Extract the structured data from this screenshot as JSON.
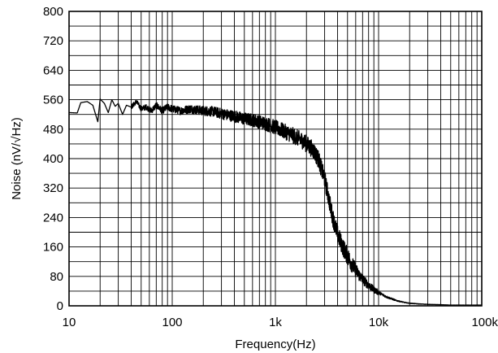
{
  "chart_data": {
    "type": "line",
    "title": "",
    "xlabel": "Frequency(Hz)",
    "ylabel": "Noise (nV/√Hz)",
    "x_scale": "log",
    "xlim": [
      10,
      100000
    ],
    "ylim": [
      0,
      800
    ],
    "x_ticks": [
      10,
      100,
      1000,
      10000,
      100000
    ],
    "x_tick_labels": [
      "10",
      "100",
      "1k",
      "10k",
      "100k"
    ],
    "y_ticks": [
      0,
      80,
      160,
      240,
      320,
      400,
      480,
      560,
      640,
      720,
      800
    ],
    "y_tick_labels": [
      "0",
      "80",
      "160",
      "240",
      "320",
      "400",
      "480",
      "560",
      "640",
      "720",
      "800"
    ],
    "grid": true,
    "series": [
      {
        "name": "",
        "color": "#000000",
        "x": [
          10,
          12,
          13,
          15,
          17,
          19,
          20,
          22,
          24,
          26,
          28,
          30,
          33,
          36,
          40,
          45,
          50,
          56,
          63,
          70,
          80,
          90,
          100,
          120,
          150,
          200,
          250,
          300,
          400,
          500,
          600,
          700,
          800,
          1000,
          1200,
          1500,
          1800,
          2000,
          2300,
          2600,
          3000,
          3300,
          3600,
          4000,
          4500,
          5000,
          5600,
          6300,
          7000,
          8000,
          9000,
          10000,
          12000,
          15000,
          18000,
          20000,
          25000,
          30000,
          40000,
          50000,
          60000,
          70000,
          80000,
          100000
        ],
        "y": [
          525,
          524,
          552,
          555,
          545,
          500,
          562,
          550,
          525,
          560,
          542,
          550,
          520,
          545,
          540,
          555,
          535,
          540,
          530,
          545,
          530,
          540,
          535,
          530,
          535,
          530,
          528,
          522,
          515,
          508,
          505,
          500,
          495,
          485,
          475,
          462,
          450,
          440,
          425,
          400,
          345,
          290,
          240,
          195,
          160,
          135,
          110,
          88,
          72,
          56,
          44,
          36,
          24,
          14,
          9,
          7,
          5,
          4,
          3,
          2,
          2,
          2,
          2,
          2
        ]
      }
    ]
  }
}
